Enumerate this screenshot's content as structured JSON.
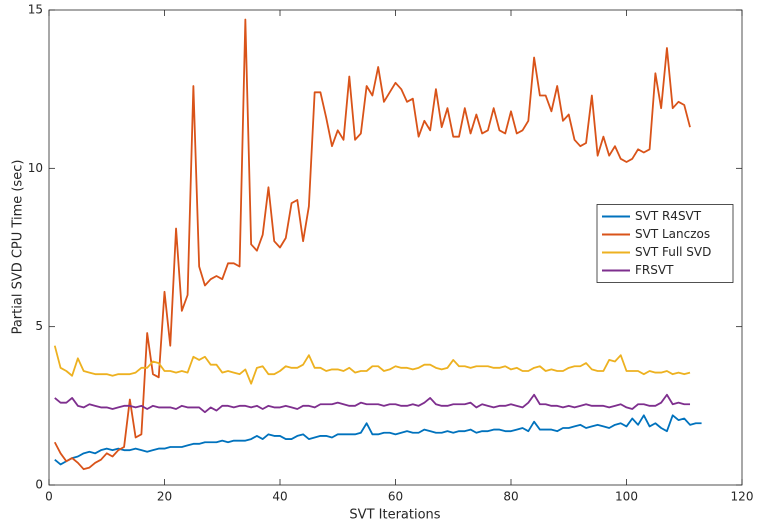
{
  "chart_data": {
    "type": "line",
    "xlabel": "SVT Iterations",
    "ylabel": "Partial SVD CPU Time (sec)",
    "xlim": [
      0,
      120
    ],
    "xticks": [
      0,
      20,
      40,
      60,
      80,
      100,
      120
    ],
    "ylim": [
      0,
      15
    ],
    "yticks": [
      0,
      5,
      10,
      15
    ],
    "legend_location": "east",
    "x": [
      1,
      2,
      3,
      4,
      5,
      6,
      7,
      8,
      9,
      10,
      11,
      12,
      13,
      14,
      15,
      16,
      17,
      18,
      19,
      20,
      21,
      22,
      23,
      24,
      25,
      26,
      27,
      28,
      29,
      30,
      31,
      32,
      33,
      34,
      35,
      36,
      37,
      38,
      39,
      40,
      41,
      42,
      43,
      44,
      45,
      46,
      47,
      48,
      49,
      50,
      51,
      52,
      53,
      54,
      55,
      56,
      57,
      58,
      59,
      60,
      61,
      62,
      63,
      64,
      65,
      66,
      67,
      68,
      69,
      70,
      71,
      72,
      73,
      74,
      75,
      76,
      77,
      78,
      79,
      80,
      81,
      82,
      83,
      84,
      85,
      86,
      87,
      88,
      89,
      90,
      91,
      92,
      93,
      94,
      95,
      96,
      97,
      98,
      99,
      100,
      101,
      102,
      103,
      104,
      105,
      106,
      107,
      108,
      109,
      110,
      111,
      112,
      113
    ],
    "series": [
      {
        "name": "SVT R4SVT",
        "color": "#0072bd",
        "values": [
          0.8,
          0.65,
          0.75,
          0.85,
          0.9,
          1.0,
          1.05,
          1.0,
          1.1,
          1.15,
          1.1,
          1.15,
          1.1,
          1.1,
          1.15,
          1.1,
          1.05,
          1.1,
          1.15,
          1.15,
          1.2,
          1.2,
          1.2,
          1.25,
          1.3,
          1.3,
          1.35,
          1.35,
          1.35,
          1.4,
          1.35,
          1.4,
          1.4,
          1.4,
          1.45,
          1.55,
          1.45,
          1.6,
          1.55,
          1.55,
          1.45,
          1.45,
          1.55,
          1.6,
          1.45,
          1.5,
          1.55,
          1.55,
          1.5,
          1.6,
          1.6,
          1.6,
          1.6,
          1.65,
          1.95,
          1.6,
          1.6,
          1.65,
          1.65,
          1.6,
          1.65,
          1.7,
          1.65,
          1.65,
          1.75,
          1.7,
          1.65,
          1.65,
          1.7,
          1.65,
          1.7,
          1.7,
          1.75,
          1.65,
          1.7,
          1.7,
          1.75,
          1.75,
          1.7,
          1.7,
          1.75,
          1.8,
          1.7,
          2.0,
          1.75,
          1.75,
          1.75,
          1.7,
          1.8,
          1.8,
          1.85,
          1.9,
          1.8,
          1.85,
          1.9,
          1.85,
          1.8,
          1.9,
          1.95,
          1.85,
          2.1,
          1.9,
          2.2,
          1.85,
          1.95,
          1.8,
          1.7,
          2.2,
          2.05,
          2.1,
          1.9,
          1.95,
          1.95
        ]
      },
      {
        "name": "SVT Lanczos",
        "color": "#d95319",
        "values": [
          1.35,
          1.0,
          0.75,
          0.85,
          0.7,
          0.5,
          0.55,
          0.7,
          0.8,
          1.0,
          0.9,
          1.1,
          1.2,
          2.7,
          1.5,
          1.6,
          4.8,
          3.5,
          3.4,
          6.1,
          4.4,
          8.1,
          5.5,
          6.0,
          12.6,
          6.9,
          6.3,
          6.5,
          6.6,
          6.5,
          7.0,
          7.0,
          6.9,
          14.7,
          7.6,
          7.4,
          7.9,
          9.4,
          7.7,
          7.5,
          7.8,
          8.9,
          9.0,
          7.7,
          8.8,
          12.4,
          12.4,
          11.6,
          10.7,
          11.2,
          10.9,
          12.9,
          10.9,
          11.1,
          12.6,
          12.3,
          13.2,
          12.1,
          12.4,
          12.7,
          12.5,
          12.1,
          12.2,
          11.0,
          11.5,
          11.2,
          12.5,
          11.3,
          11.9,
          11.0,
          11.0,
          11.9,
          11.1,
          11.7,
          11.1,
          11.2,
          11.9,
          11.2,
          11.1,
          11.8,
          11.1,
          11.2,
          11.5,
          13.5,
          12.3,
          12.3,
          11.8,
          12.6,
          11.5,
          11.7,
          10.9,
          10.7,
          10.8,
          12.3,
          10.4,
          11.0,
          10.4,
          10.7,
          10.3,
          10.2,
          10.3,
          10.6,
          10.5,
          10.6,
          13.0,
          11.9,
          13.8,
          11.9,
          12.1,
          12.0,
          11.3,
          null,
          null
        ]
      },
      {
        "name": "SVT Full SVD",
        "color": "#edb120",
        "values": [
          4.4,
          3.7,
          3.6,
          3.45,
          4.0,
          3.6,
          3.55,
          3.5,
          3.5,
          3.5,
          3.45,
          3.5,
          3.5,
          3.5,
          3.55,
          3.7,
          3.7,
          3.9,
          3.85,
          3.6,
          3.6,
          3.55,
          3.6,
          3.55,
          4.05,
          3.95,
          4.05,
          3.8,
          3.8,
          3.55,
          3.6,
          3.55,
          3.5,
          3.65,
          3.2,
          3.7,
          3.75,
          3.5,
          3.5,
          3.6,
          3.75,
          3.7,
          3.7,
          3.8,
          4.1,
          3.7,
          3.7,
          3.6,
          3.65,
          3.65,
          3.6,
          3.7,
          3.55,
          3.6,
          3.6,
          3.75,
          3.75,
          3.6,
          3.65,
          3.75,
          3.7,
          3.7,
          3.65,
          3.7,
          3.8,
          3.8,
          3.7,
          3.65,
          3.7,
          3.95,
          3.75,
          3.75,
          3.7,
          3.75,
          3.75,
          3.75,
          3.7,
          3.7,
          3.75,
          3.65,
          3.7,
          3.6,
          3.6,
          3.7,
          3.75,
          3.6,
          3.65,
          3.6,
          3.6,
          3.7,
          3.75,
          3.75,
          3.85,
          3.65,
          3.6,
          3.6,
          3.95,
          3.9,
          4.1,
          3.6,
          3.6,
          3.6,
          3.5,
          3.6,
          3.55,
          3.55,
          3.6,
          3.5,
          3.55,
          3.5,
          3.55,
          null,
          null
        ]
      },
      {
        "name": "FRSVT",
        "color": "#7e2f8e",
        "values": [
          2.75,
          2.6,
          2.6,
          2.75,
          2.5,
          2.45,
          2.55,
          2.5,
          2.45,
          2.45,
          2.4,
          2.45,
          2.5,
          2.5,
          2.45,
          2.5,
          2.4,
          2.5,
          2.45,
          2.45,
          2.45,
          2.4,
          2.5,
          2.45,
          2.45,
          2.45,
          2.3,
          2.45,
          2.35,
          2.5,
          2.5,
          2.45,
          2.5,
          2.5,
          2.45,
          2.5,
          2.4,
          2.5,
          2.45,
          2.45,
          2.5,
          2.45,
          2.4,
          2.5,
          2.5,
          2.45,
          2.55,
          2.55,
          2.55,
          2.6,
          2.55,
          2.5,
          2.5,
          2.6,
          2.55,
          2.55,
          2.55,
          2.5,
          2.55,
          2.55,
          2.5,
          2.5,
          2.55,
          2.5,
          2.6,
          2.75,
          2.55,
          2.5,
          2.5,
          2.55,
          2.55,
          2.55,
          2.6,
          2.45,
          2.55,
          2.5,
          2.45,
          2.5,
          2.5,
          2.55,
          2.5,
          2.45,
          2.6,
          2.85,
          2.55,
          2.55,
          2.5,
          2.5,
          2.45,
          2.5,
          2.45,
          2.5,
          2.55,
          2.5,
          2.5,
          2.5,
          2.45,
          2.5,
          2.55,
          2.45,
          2.4,
          2.55,
          2.55,
          2.5,
          2.5,
          2.6,
          2.85,
          2.55,
          2.6,
          2.55,
          2.55,
          null,
          null
        ]
      }
    ]
  }
}
